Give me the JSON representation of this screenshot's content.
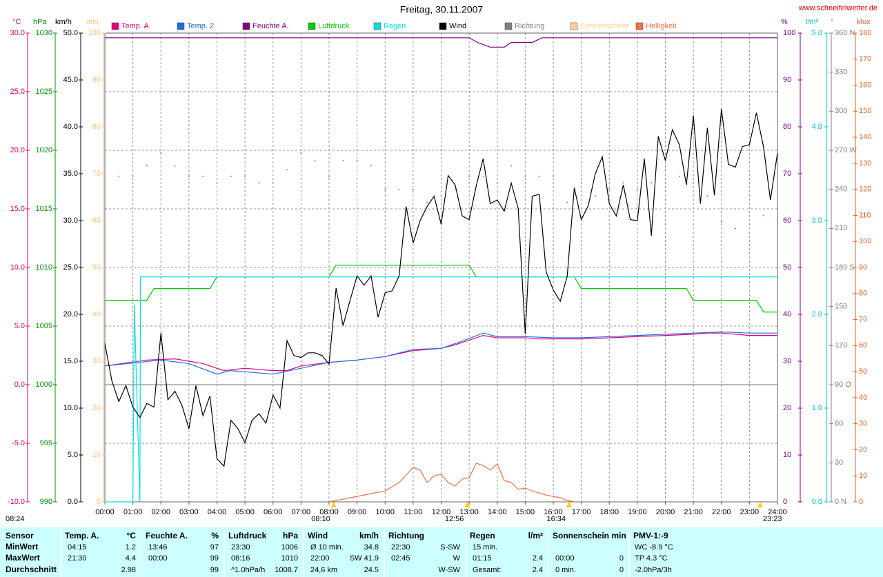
{
  "site": "www.schneifelwetter.de",
  "chart_data": {
    "type": "line",
    "title": "Freitag, 30.11.2007",
    "grid": true,
    "grid_axis": "temp",
    "xlim": [
      0,
      24
    ],
    "xticks": [
      {
        "value": 0,
        "label": "00:00"
      },
      {
        "value": 1,
        "label": "01:00"
      },
      {
        "value": 2,
        "label": "02:00"
      },
      {
        "value": 3,
        "label": "03:00"
      },
      {
        "value": 4,
        "label": "04:00"
      },
      {
        "value": 5,
        "label": "05:00"
      },
      {
        "value": 6,
        "label": "06:00"
      },
      {
        "value": 7,
        "label": "07:00"
      },
      {
        "value": 8,
        "label": "08:00"
      },
      {
        "value": 9,
        "label": "09:00"
      },
      {
        "value": 10,
        "label": "10:00"
      },
      {
        "value": 11,
        "label": "11:00"
      },
      {
        "value": 12,
        "label": "12:00"
      },
      {
        "value": 13,
        "label": "13:00"
      },
      {
        "value": 14,
        "label": "14:00"
      },
      {
        "value": 15,
        "label": "15:00"
      },
      {
        "value": 16,
        "label": "16:00"
      },
      {
        "value": 17,
        "label": "17:00"
      },
      {
        "value": 18,
        "label": "18:00"
      },
      {
        "value": 19,
        "label": "19:00"
      },
      {
        "value": 20,
        "label": "20:00"
      },
      {
        "value": 21,
        "label": "21:00"
      },
      {
        "value": 22,
        "label": "22:00"
      },
      {
        "value": 23,
        "label": "23:00"
      },
      {
        "value": 24,
        "label": "24:00"
      }
    ],
    "axes": {
      "temp": {
        "unit": "°C",
        "color": "#d0006f",
        "lim": [
          -10,
          30
        ],
        "ticks": [
          {
            "value": -10,
            "label": "-10.0"
          },
          {
            "value": -5,
            "label": "-5.0"
          },
          {
            "value": 0,
            "label": "0.0"
          },
          {
            "value": 5,
            "label": "5.0"
          },
          {
            "value": 10,
            "label": "10.0"
          },
          {
            "value": 15,
            "label": "15.0"
          },
          {
            "value": 20,
            "label": "20.0"
          },
          {
            "value": 25,
            "label": "25.0"
          },
          {
            "value": 30,
            "label": "30.0"
          }
        ]
      },
      "hpa": {
        "unit": "hPa",
        "color": "#009000",
        "lim": [
          990,
          1030
        ],
        "ticks": [
          990,
          995,
          1000,
          1005,
          1010,
          1015,
          1020,
          1025,
          1030
        ]
      },
      "kmh": {
        "unit": "km/h",
        "color": "#000000",
        "lim": [
          0,
          50
        ],
        "ticks": [
          {
            "value": 0,
            "label": "0.0"
          },
          {
            "value": 5,
            "label": "5.0"
          },
          {
            "value": 10,
            "label": "10.0"
          },
          {
            "value": 15,
            "label": "15.0"
          },
          {
            "value": 20,
            "label": "20.0"
          },
          {
            "value": 25,
            "label": "25.0"
          },
          {
            "value": 30,
            "label": "30.0"
          },
          {
            "value": 35,
            "label": "35.0"
          },
          {
            "value": 40,
            "label": "40.0"
          },
          {
            "value": 45,
            "label": "45.0"
          },
          {
            "value": 50,
            "label": "50.0"
          }
        ]
      },
      "min": {
        "unit": "min",
        "color": "#ffc080",
        "lim": [
          0,
          100
        ],
        "ticks": [
          0,
          10,
          20,
          30,
          40,
          50,
          60,
          70,
          80,
          90,
          100
        ]
      },
      "pct": {
        "unit": "%",
        "color": "#800080",
        "lim": [
          0,
          100
        ],
        "ticks": [
          0,
          10,
          20,
          30,
          40,
          50,
          60,
          70,
          80,
          90,
          100
        ]
      },
      "lm2": {
        "unit": "l/m²",
        "color": "#00c0c0",
        "lim": [
          0,
          5
        ],
        "ticks": [
          {
            "value": 0,
            "label": "0.0"
          },
          {
            "value": 1,
            "label": "1.0"
          },
          {
            "value": 2,
            "label": "2.0"
          },
          {
            "value": 3,
            "label": "3.0"
          },
          {
            "value": 4,
            "label": "4.0"
          },
          {
            "value": 5,
            "label": "5.0"
          }
        ]
      },
      "deg": {
        "unit": "°",
        "color": "#808080",
        "lim": [
          0,
          360
        ],
        "ticks": [
          {
            "value": 0,
            "label": "0 N"
          },
          30,
          60,
          {
            "value": 90,
            "label": "90 O"
          },
          120,
          150,
          {
            "value": 180,
            "label": "180 S"
          },
          210,
          240,
          {
            "value": 270,
            "label": "270 W"
          },
          300,
          330,
          {
            "value": 360,
            "label": "360 N"
          }
        ]
      },
      "klux": {
        "unit": "klux",
        "color": "#e06020",
        "lim": [
          0,
          180
        ],
        "ticks": [
          0,
          10,
          20,
          30,
          40,
          50,
          60,
          70,
          80,
          90,
          100,
          110,
          120,
          130,
          140,
          150,
          160,
          170,
          180
        ]
      }
    },
    "series": [
      {
        "name": "Temp. A.",
        "color": "#e0007f",
        "axis": "temp",
        "x": [
          0,
          1.5,
          2.5,
          3.5,
          4.25,
          5,
          6,
          6.5,
          7,
          8,
          9,
          10,
          11,
          12,
          12.5,
          13.5,
          14,
          15,
          15.5,
          17,
          18,
          19,
          20,
          21,
          21.5,
          22,
          23,
          24
        ],
        "values": [
          1.6,
          2.1,
          2.2,
          1.8,
          1.2,
          1.4,
          1.2,
          1.2,
          1.6,
          1.9,
          2.1,
          2.4,
          2.9,
          3.1,
          3.4,
          4.2,
          4.0,
          4.0,
          3.9,
          3.9,
          4.0,
          4.1,
          4.2,
          4.3,
          4.4,
          4.4,
          4.2,
          4.2
        ]
      },
      {
        "name": "Temp. 2",
        "color": "#1e6fe0",
        "axis": "temp",
        "x": [
          0,
          2,
          3,
          4,
          4.5,
          5,
          6,
          7,
          8,
          9,
          10,
          11,
          12,
          12.5,
          13.5,
          14,
          15,
          16,
          17,
          18,
          19,
          20,
          21,
          22,
          23,
          24
        ],
        "values": [
          1.6,
          2.1,
          1.8,
          0.9,
          1.2,
          1.1,
          0.9,
          1.4,
          1.9,
          2.1,
          2.4,
          3.0,
          3.1,
          3.5,
          4.4,
          4.1,
          4.1,
          4.0,
          4.0,
          4.1,
          4.2,
          4.3,
          4.4,
          4.5,
          4.4,
          4.4
        ]
      },
      {
        "name": "Feuchte A.",
        "color": "#800080",
        "axis": "pct",
        "x": [
          0,
          13,
          13.3,
          13.75,
          14.25,
          14.5,
          15.25,
          15.6,
          24
        ],
        "values": [
          99,
          99,
          98,
          97,
          97,
          98,
          98,
          99,
          99
        ]
      },
      {
        "name": "Luftdruck",
        "color": "#00cc00",
        "axis": "hpa",
        "x": [
          0,
          1.5,
          1.75,
          3.75,
          4,
          8,
          8.25,
          13,
          13.25,
          16.75,
          17,
          20.75,
          21,
          23.25,
          23.5,
          24
        ],
        "values": [
          1007.2,
          1007.2,
          1008.2,
          1008.2,
          1009.2,
          1009.2,
          1010.2,
          1010.2,
          1009.2,
          1009.2,
          1008.2,
          1008.2,
          1007.2,
          1007.2,
          1006.2,
          1006.2
        ]
      },
      {
        "name": "Regen",
        "color": "#00e0e0",
        "axis": "lm2",
        "x": [
          0,
          1,
          1.05,
          1.25,
          1.27,
          24
        ],
        "values": [
          0,
          0,
          2.1,
          0,
          2.4,
          2.4
        ]
      },
      {
        "name": "Wind",
        "color": "#000000",
        "axis": "kmh",
        "x": [
          0,
          0.25,
          0.5,
          0.75,
          1,
          1.25,
          1.5,
          1.75,
          2,
          2.25,
          2.5,
          2.75,
          3,
          3.25,
          3.5,
          3.75,
          4,
          4.25,
          4.5,
          4.75,
          5,
          5.25,
          5.5,
          5.75,
          6,
          6.25,
          6.5,
          6.75,
          7,
          7.25,
          7.5,
          7.75,
          8,
          8.25,
          8.5,
          8.75,
          9,
          9.25,
          9.5,
          9.75,
          10,
          10.25,
          10.5,
          10.75,
          11,
          11.25,
          11.5,
          11.75,
          12,
          12.25,
          12.5,
          12.75,
          13,
          13.25,
          13.5,
          13.75,
          14,
          14.25,
          14.5,
          14.75,
          15,
          15.25,
          15.5,
          15.75,
          16,
          16.25,
          16.5,
          16.75,
          17,
          17.25,
          17.5,
          17.75,
          18,
          18.25,
          18.5,
          18.75,
          19,
          19.25,
          19.5,
          19.75,
          20,
          20.25,
          20.5,
          20.75,
          21,
          21.25,
          21.5,
          21.75,
          22,
          22.25,
          22.5,
          22.75,
          23,
          23.25,
          23.5,
          23.75,
          24
        ],
        "values": [
          16.9,
          12.9,
          10.7,
          12.4,
          10.1,
          9.0,
          10.5,
          10.1,
          18.0,
          10.9,
          11.8,
          10.3,
          7.8,
          12.4,
          9.2,
          11.3,
          4.6,
          3.8,
          8.7,
          7.8,
          6.3,
          8.7,
          9.4,
          8.4,
          11.4,
          10.0,
          17.2,
          15.6,
          15.4,
          15.9,
          15.9,
          15.6,
          14.7,
          22.8,
          18.8,
          21.5,
          24.1,
          23.1,
          24.1,
          19.7,
          22.3,
          22.5,
          24.1,
          31.5,
          27.6,
          30.0,
          31.5,
          32.6,
          29.6,
          34.8,
          33.8,
          30.5,
          30.1,
          33.7,
          36.6,
          31.8,
          32.2,
          31.0,
          34.0,
          31.3,
          17.9,
          32.6,
          32.8,
          24.5,
          22.6,
          21.4,
          24.1,
          33.5,
          30.1,
          31.6,
          35.0,
          36.8,
          31.8,
          30.5,
          33.8,
          30.1,
          30.0,
          36.6,
          28.4,
          39.0,
          36.4,
          39.7,
          38.1,
          33.8,
          41.2,
          31.8,
          39.9,
          32.7,
          41.9,
          36.0,
          35.7,
          37.9,
          38.1,
          41.5,
          37.9,
          32.2,
          37.2
        ]
      },
      {
        "name": "Richtung",
        "color": "#808080",
        "axis": "deg",
        "style": "dots",
        "x": [
          0,
          0.5,
          1,
          1.5,
          2,
          2.5,
          3,
          3.5,
          4,
          4.5,
          5,
          5.5,
          6,
          6.5,
          7,
          7.5,
          8,
          8.5,
          9,
          9.5,
          10,
          10.5,
          11,
          11.5,
          12,
          12.5,
          13,
          13.5,
          14,
          14.5,
          15,
          15.5,
          16,
          16.5,
          17,
          17.5,
          18,
          18.5,
          19,
          19.5,
          20,
          20.5,
          21,
          21.5,
          22,
          22.5,
          23,
          23.5,
          24
        ],
        "values": [
          250,
          250,
          250,
          258,
          268,
          258,
          250,
          250,
          245,
          250,
          250,
          245,
          245,
          255,
          268,
          262,
          250,
          262,
          262,
          258,
          240,
          240,
          240,
          230,
          235,
          240,
          250,
          250,
          245,
          258,
          250,
          250,
          250,
          230,
          245,
          235,
          240,
          245,
          240,
          245,
          255,
          250,
          245,
          235,
          215,
          210,
          235,
          220,
          215
        ]
      },
      {
        "name": "Sonnenschein",
        "color": "#ffd090",
        "axis": "min",
        "x": [],
        "values": []
      },
      {
        "name": "Helligkeit",
        "color": "#f07040",
        "axis": "klux",
        "x": [
          8,
          9,
          10,
          10.5,
          11,
          11.25,
          11.5,
          11.75,
          12,
          12.25,
          12.5,
          12.75,
          13,
          13.25,
          13.5,
          13.75,
          14,
          14.25,
          14.5,
          14.75,
          15,
          15.25,
          15.75,
          16.25,
          16.5,
          16.75
        ],
        "values": [
          0,
          2.1,
          4.2,
          7.4,
          13.2,
          12.2,
          7.4,
          10,
          10.6,
          7.4,
          6.1,
          8.7,
          9.3,
          14.8,
          14,
          12.2,
          14.6,
          8.2,
          7.4,
          4.8,
          5.3,
          4.2,
          2.6,
          1.6,
          0.5,
          0
        ]
      }
    ],
    "annotations": [
      {
        "text": "08:10",
        "x": 8.1667
      },
      {
        "text": "12:56",
        "x": 12.9333
      },
      {
        "text": "16:34",
        "x": 16.5667
      },
      {
        "text": "23:23",
        "x": 23.3833
      }
    ],
    "moon_time": "08:24"
  },
  "stats": {
    "labels": [
      "Sensor",
      "MinWert",
      "MaxWert",
      "Durchschnitt"
    ],
    "blocks": [
      {
        "header": "Temp. A.",
        "unit": "°C",
        "rows": [
          [
            "04:15",
            "1.2"
          ],
          [
            "21:30",
            "4.4"
          ],
          [
            null,
            "2.98"
          ]
        ]
      },
      {
        "header": "Feuchte A.",
        "unit": "%",
        "rows": [
          [
            "13:46",
            "97"
          ],
          [
            "00:00",
            "99"
          ],
          [
            null,
            "99"
          ]
        ]
      },
      {
        "header": "Luftdruck",
        "unit": "hPa",
        "rows": [
          [
            "23:30",
            "1006"
          ],
          [
            "08:16",
            "1010"
          ],
          [
            "^1.0hPa/h",
            "1008.7"
          ]
        ]
      },
      {
        "header": "Wind",
        "unit": "km/h",
        "rows": [
          [
            "Ø 10 min.",
            "34.8"
          ],
          [
            "22:00",
            "SW 41.9"
          ],
          [
            "24,6 km",
            "24.5"
          ]
        ]
      },
      {
        "header": "Richtung",
        "unit": null,
        "rows": [
          [
            "22:30",
            "S-SW"
          ],
          [
            "02:45",
            "W"
          ],
          [
            null,
            "W-SW"
          ]
        ]
      },
      {
        "header": "Regen",
        "unit": "l/m²",
        "rows": [
          [
            "15 min.",
            null
          ],
          [
            "01:15",
            "2.4"
          ],
          [
            "Gesamt:",
            "2.4"
          ]
        ]
      },
      {
        "header": "Sonnenschein min",
        "unit": null,
        "rows": [
          [
            null,
            null
          ],
          [
            "00:00",
            "0"
          ],
          [
            "0 min.",
            "0"
          ]
        ]
      },
      {
        "header": "PMV-1:-9",
        "unit": null,
        "rows": [
          [
            "WC -8.9 °C",
            null
          ],
          [
            "TP 4.3 °C",
            null
          ],
          [
            "-2.0hPa/3h",
            null
          ]
        ]
      }
    ]
  }
}
